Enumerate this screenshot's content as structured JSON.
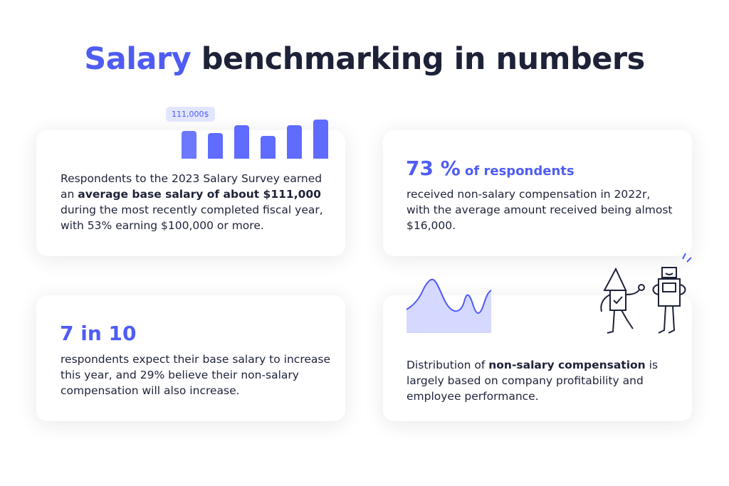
{
  "title": {
    "accent": "Salary",
    "rest": " benchmarking in numbers"
  },
  "colors": {
    "accent": "#4f5cf3",
    "text": "#1e2238",
    "bar": "#5f6cff",
    "area_fill": "#d6d9ff"
  },
  "card1": {
    "badge": "111,000$",
    "text_before": "Respondents to the 2023 Salary Survey earned an ",
    "text_bold": "average base salary of about $111,000",
    "text_after": " during the most recently completed fiscal year, with 53% earning $100,000 or more."
  },
  "card2": {
    "stat": "73 %",
    "stat_suffix": " of respondents",
    "text": "received non-salary compensation in 2022r, with the average amount received being almost $16,000."
  },
  "card3": {
    "stat": "7 in 10",
    "text": "respondents expect their base salary to increase this year, and 29% believe their non-salary compensation will also increase."
  },
  "card4": {
    "text_before": "Distribution of ",
    "text_bold": "non-salary compensation",
    "text_after": " is largely based on company profitability and employee performance."
  },
  "icons": [
    "bar-chart-illustration",
    "area-chart-illustration",
    "robots-illustration"
  ]
}
